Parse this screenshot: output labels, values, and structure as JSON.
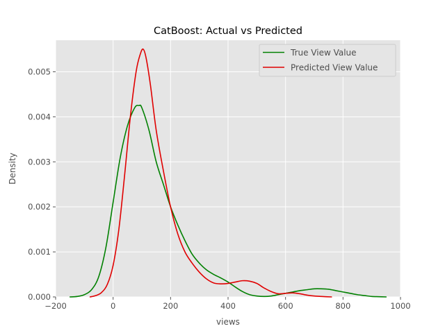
{
  "chart_data": {
    "type": "line",
    "title": "CatBoost: Actual vs Predicted",
    "xlabel": "views",
    "ylabel": "Density",
    "xlim": [
      -200,
      1000
    ],
    "ylim": [
      0,
      0.0057
    ],
    "xticks": [
      -200,
      0,
      200,
      400,
      600,
      800,
      1000
    ],
    "xtick_labels": [
      "−200",
      "0",
      "200",
      "400",
      "600",
      "800",
      "1000"
    ],
    "yticks": [
      0,
      0.001,
      0.002,
      0.003,
      0.004,
      0.005
    ],
    "ytick_labels": [
      "0.000",
      "0.001",
      "0.002",
      "0.003",
      "0.004",
      "0.005"
    ],
    "grid": true,
    "legend_position": "top-right",
    "series": [
      {
        "name": "True View Value",
        "color": "#008000",
        "x": [
          -150,
          -125,
          -100,
          -75,
          -50,
          -25,
          0,
          25,
          50,
          75,
          90,
          100,
          125,
          150,
          175,
          200,
          225,
          250,
          275,
          300,
          325,
          350,
          375,
          400,
          425,
          450,
          475,
          500,
          525,
          550,
          575,
          600,
          625,
          650,
          675,
          700,
          725,
          750,
          775,
          800,
          825,
          850,
          875,
          900,
          925,
          950
        ],
        "y": [
          0.0,
          1e-05,
          5e-05,
          0.00016,
          0.00045,
          0.0011,
          0.0021,
          0.0031,
          0.0038,
          0.0042,
          0.00425,
          0.0042,
          0.0037,
          0.003,
          0.0025,
          0.002,
          0.0016,
          0.00125,
          0.00095,
          0.00075,
          0.0006,
          0.0005,
          0.00042,
          0.00033,
          0.00022,
          0.00012,
          5e-05,
          2e-05,
          1e-05,
          2e-05,
          5e-05,
          8e-05,
          0.00011,
          0.00014,
          0.00016,
          0.00018,
          0.00018,
          0.00017,
          0.00014,
          0.00011,
          8e-05,
          5e-05,
          3e-05,
          1e-05,
          5e-06,
          0.0
        ]
      },
      {
        "name": "Predicted View Value",
        "color": "#e00000",
        "x": [
          -80,
          -60,
          -40,
          -20,
          0,
          20,
          40,
          60,
          80,
          95,
          105,
          115,
          130,
          150,
          175,
          200,
          225,
          250,
          275,
          300,
          325,
          350,
          375,
          400,
          425,
          450,
          475,
          500,
          525,
          550,
          575,
          600,
          625,
          650,
          675,
          700,
          725,
          760
        ],
        "y": [
          0.0,
          3e-05,
          0.0001,
          0.00028,
          0.0007,
          0.0015,
          0.0027,
          0.004,
          0.005,
          0.0054,
          0.0055,
          0.0053,
          0.0047,
          0.0037,
          0.0028,
          0.002,
          0.0014,
          0.001,
          0.00075,
          0.00055,
          0.0004,
          0.00031,
          0.00029,
          0.0003,
          0.00033,
          0.00036,
          0.00035,
          0.0003,
          0.0002,
          0.00012,
          7e-05,
          8e-05,
          9e-05,
          7e-05,
          4e-05,
          2e-05,
          1e-05,
          0.0
        ]
      }
    ]
  }
}
